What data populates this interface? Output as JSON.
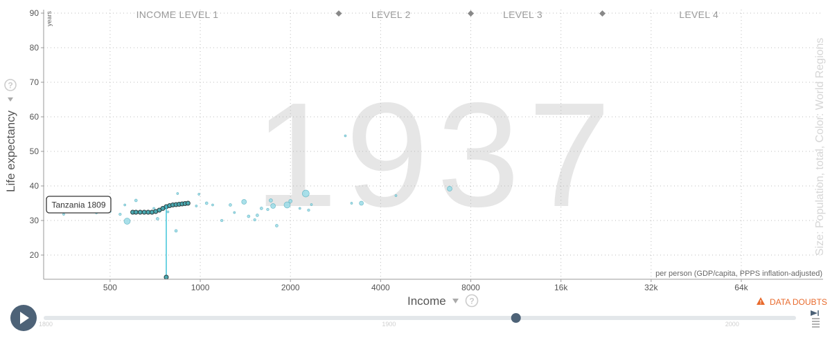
{
  "year_label": "1937",
  "income_levels": [
    "INCOME LEVEL 1",
    "LEVEL 2",
    "LEVEL 3",
    "LEVEL 4"
  ],
  "y_axis": {
    "title": "Life expectancy",
    "unit": "years",
    "help": "?"
  },
  "x_axis": {
    "title": "Income",
    "unit_note": "per person (GDP/capita, PPPS inflation-adjusted)",
    "help": "?"
  },
  "size_color_note": "Size: Population, total, Color: World Regions",
  "data_doubts": "DATA DOUBTS",
  "timeline": {
    "ticks": [
      "1800",
      "1900",
      "2000"
    ],
    "start": 1800,
    "end": 2018,
    "value": 1937
  },
  "callout": "Tanzania 1809",
  "colors": {
    "bubble": "#9adbe6",
    "bubble_stroke": "#4aa8b8",
    "trail": "#2c3e3f",
    "highlight": "#3fc4d9",
    "year": "#e6e6e6",
    "doubts": "#e86a2c",
    "play": "#4d6277"
  },
  "chart_data": {
    "type": "scatter",
    "title": "",
    "xlabel": "Income",
    "ylabel": "Life expectancy",
    "x_scale": "log",
    "xlim": [
      300,
      120000
    ],
    "ylim": [
      13,
      91
    ],
    "x_ticks": [
      500,
      1000,
      2000,
      4000,
      8000,
      16000,
      32000,
      64000
    ],
    "x_tick_labels": [
      "500",
      "1000",
      "2000",
      "4000",
      "8000",
      "16k",
      "32k",
      "64k"
    ],
    "y_ticks": [
      20,
      30,
      40,
      50,
      60,
      70,
      80,
      90
    ],
    "grid": true,
    "income_level_bounds": [
      2900,
      8000,
      22000
    ],
    "points": [
      {
        "x": 350,
        "y": 31.8,
        "r": 1.5
      },
      {
        "x": 450,
        "y": 32.2,
        "r": 1.5
      },
      {
        "x": 500,
        "y": 32.6,
        "r": 1.5
      },
      {
        "x": 540,
        "y": 31.8,
        "r": 1.8
      },
      {
        "x": 560,
        "y": 34.5,
        "r": 1.5
      },
      {
        "x": 570,
        "y": 29.8,
        "r": 4.5
      },
      {
        "x": 610,
        "y": 35.8,
        "r": 2
      },
      {
        "x": 700,
        "y": 33.5,
        "r": 1.5
      },
      {
        "x": 720,
        "y": 30.5,
        "r": 2
      },
      {
        "x": 780,
        "y": 32.5,
        "r": 1.5
      },
      {
        "x": 830,
        "y": 27.0,
        "r": 2
      },
      {
        "x": 840,
        "y": 37.8,
        "r": 1.5
      },
      {
        "x": 970,
        "y": 34.2,
        "r": 1.5
      },
      {
        "x": 990,
        "y": 37.6,
        "r": 1.5
      },
      {
        "x": 1050,
        "y": 35.0,
        "r": 2
      },
      {
        "x": 1100,
        "y": 34.5,
        "r": 1.5
      },
      {
        "x": 1180,
        "y": 30.0,
        "r": 1.8
      },
      {
        "x": 1260,
        "y": 34.5,
        "r": 2
      },
      {
        "x": 1300,
        "y": 32.3,
        "r": 1.5
      },
      {
        "x": 1400,
        "y": 35.4,
        "r": 3.5
      },
      {
        "x": 1450,
        "y": 31.2,
        "r": 2
      },
      {
        "x": 1520,
        "y": 30.2,
        "r": 1.8
      },
      {
        "x": 1550,
        "y": 31.5,
        "r": 2
      },
      {
        "x": 1600,
        "y": 33.5,
        "r": 2
      },
      {
        "x": 1680,
        "y": 33.2,
        "r": 1.8
      },
      {
        "x": 1720,
        "y": 35.8,
        "r": 2.5
      },
      {
        "x": 1750,
        "y": 34.2,
        "r": 3.5
      },
      {
        "x": 1800,
        "y": 28.5,
        "r": 2
      },
      {
        "x": 1950,
        "y": 34.5,
        "r": 4.5
      },
      {
        "x": 2000,
        "y": 35.6,
        "r": 2.5
      },
      {
        "x": 2150,
        "y": 33.5,
        "r": 1.5
      },
      {
        "x": 2250,
        "y": 37.8,
        "r": 5
      },
      {
        "x": 2300,
        "y": 33.0,
        "r": 1.8
      },
      {
        "x": 2350,
        "y": 34.6,
        "r": 1.5
      },
      {
        "x": 3050,
        "y": 54.5,
        "r": 1.5
      },
      {
        "x": 3200,
        "y": 35.0,
        "r": 1.5
      },
      {
        "x": 3450,
        "y": 35.0,
        "r": 3
      },
      {
        "x": 4500,
        "y": 37.2,
        "r": 1.5
      },
      {
        "x": 6800,
        "y": 39.2,
        "r": 3.5
      }
    ],
    "trail": {
      "name": "Tanzania",
      "points": [
        [
          595,
          32.4
        ],
        [
          610,
          32.4
        ],
        [
          630,
          32.4
        ],
        [
          650,
          32.4
        ],
        [
          670,
          32.4
        ],
        [
          690,
          32.4
        ],
        [
          710,
          32.6
        ],
        [
          730,
          33.0
        ],
        [
          750,
          33.5
        ],
        [
          770,
          34.0
        ],
        [
          790,
          34.3
        ],
        [
          810,
          34.5
        ],
        [
          830,
          34.6
        ],
        [
          850,
          34.7
        ],
        [
          870,
          34.8
        ],
        [
          890,
          34.9
        ],
        [
          910,
          35.0
        ]
      ]
    },
    "highlight": {
      "x": 770,
      "y": 34.3,
      "base_y": 13.6
    }
  }
}
